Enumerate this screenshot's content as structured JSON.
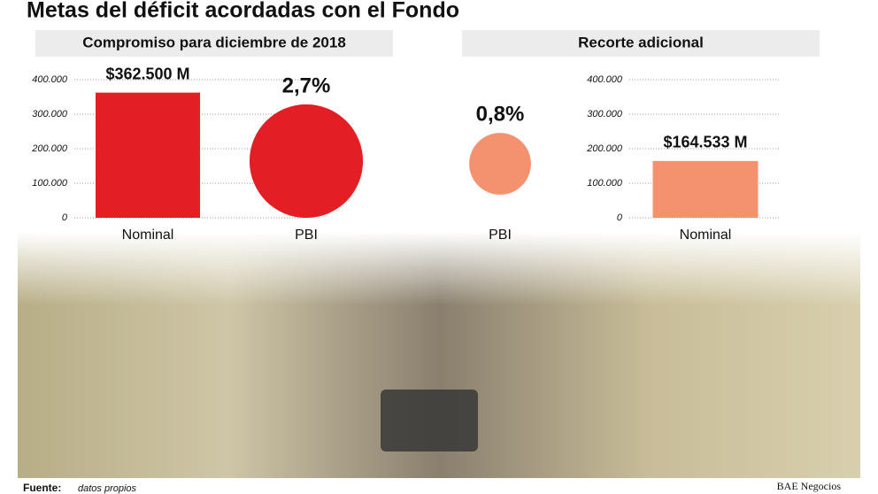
{
  "title": "Metas del déficit acordadas con el Fondo",
  "chart_data": [
    {
      "type": "bar",
      "subtitle": "Compromiso para diciembre de 2018",
      "categories": [
        "Nominal"
      ],
      "values": [
        362500
      ],
      "value_labels": [
        "$362.500 M"
      ],
      "color": "#e31e24",
      "ylim": [
        0,
        400000
      ],
      "yticks": [
        0,
        {
          "value": 100000,
          "label": "100.000"
        },
        {
          "value": 200000,
          "label": "200.000"
        },
        {
          "value": 300000,
          "label": "300.000"
        },
        {
          "value": 400000,
          "label": "400.000"
        }
      ],
      "grid": true
    },
    {
      "type": "circle",
      "categories": [
        "PBI"
      ],
      "values": [
        2.7
      ],
      "value_labels": [
        "2,7%"
      ],
      "color": "#e31e24"
    },
    {
      "type": "circle",
      "subtitle": "Recorte adicional",
      "categories": [
        "PBI"
      ],
      "values": [
        0.8
      ],
      "value_labels": [
        "0,8%"
      ],
      "color": "#f4926f"
    },
    {
      "type": "bar",
      "categories": [
        "Nominal"
      ],
      "values": [
        164533
      ],
      "value_labels": [
        "$164.533 M"
      ],
      "color": "#f4926f",
      "ylim": [
        0,
        400000
      ],
      "yticks": [
        0,
        {
          "value": 100000,
          "label": "100.000"
        },
        {
          "value": 200000,
          "label": "200.000"
        },
        {
          "value": 300000,
          "label": "300.000"
        },
        {
          "value": 400000,
          "label": "400.000"
        }
      ],
      "grid": true
    }
  ],
  "source_label": "Fuente:",
  "source": "datos propios",
  "credit": "BAE Negocios"
}
